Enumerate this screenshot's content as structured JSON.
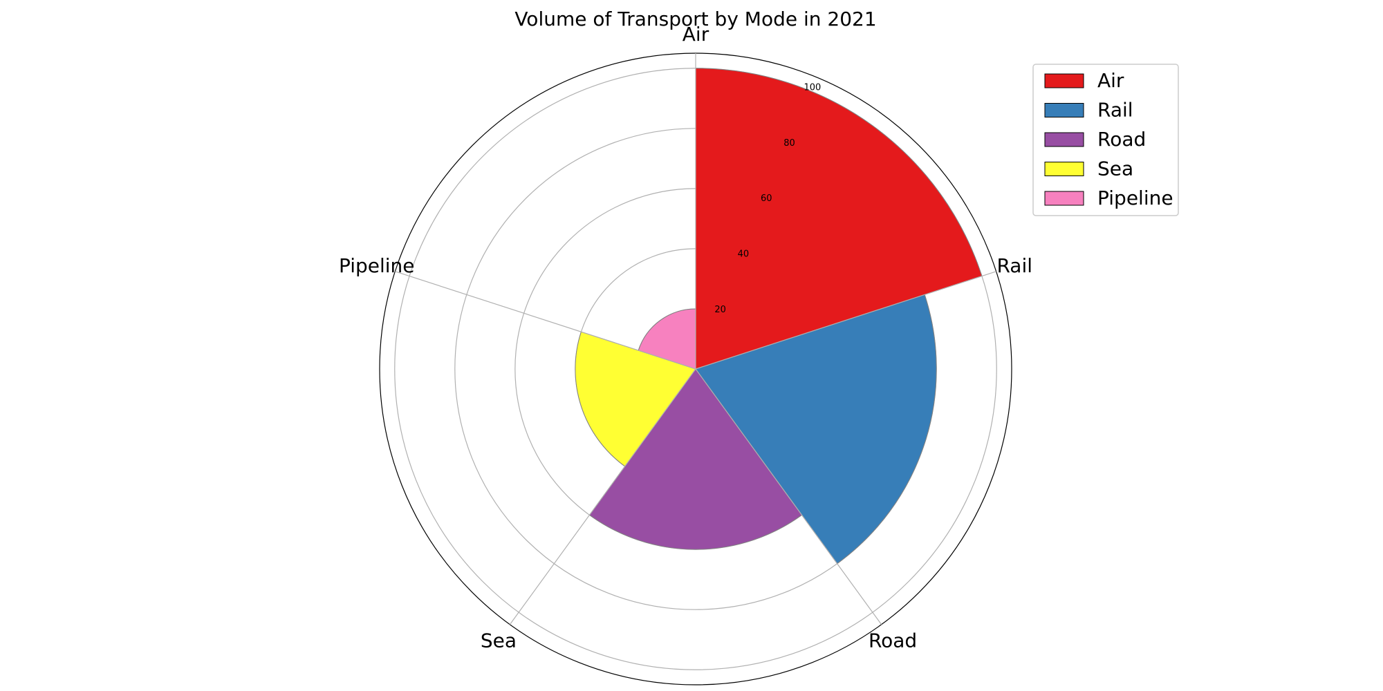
{
  "chart_data": {
    "type": "polar-bar",
    "title": "Volume of Transport by Mode in 2021",
    "categories": [
      "Air",
      "Rail",
      "Road",
      "Sea",
      "Pipeline"
    ],
    "values": [
      100,
      80,
      60,
      40,
      20
    ],
    "colors": [
      "#e41a1c",
      "#377eb8",
      "#984ea3",
      "#ffff33",
      "#f781bf"
    ],
    "r_ticks": [
      20,
      40,
      60,
      80,
      100
    ],
    "rlim": [
      0,
      105
    ],
    "grid": true,
    "legend": {
      "position": "upper-right",
      "entries": [
        "Air",
        "Rail",
        "Road",
        "Sea",
        "Pipeline"
      ]
    }
  }
}
